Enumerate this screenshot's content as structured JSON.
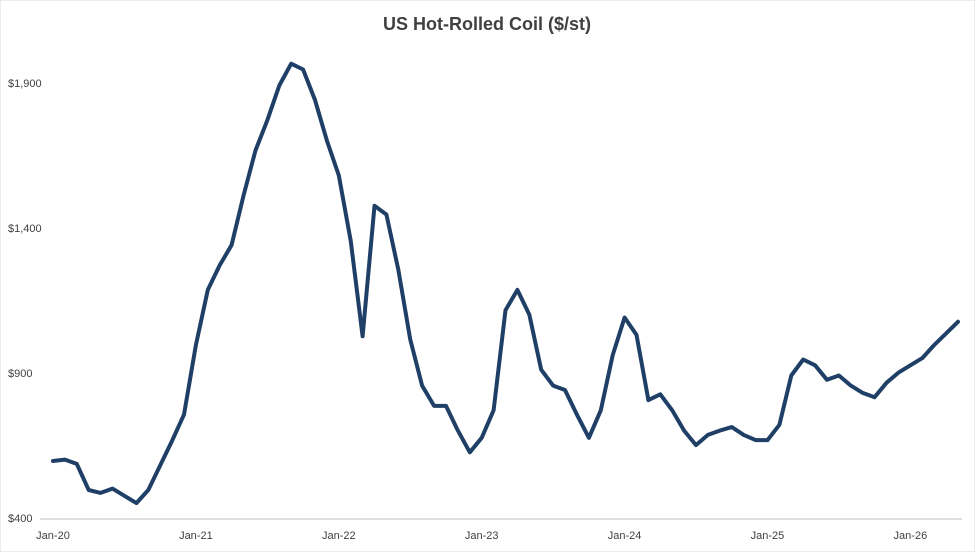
{
  "chart_data": {
    "type": "line",
    "title": "US Hot-Rolled Coil  ($/st)",
    "categories": [
      "Jan-20",
      null,
      null,
      null,
      null,
      null,
      null,
      null,
      null,
      null,
      null,
      null,
      "Jan-21",
      null,
      null,
      null,
      null,
      null,
      null,
      null,
      null,
      null,
      null,
      null,
      "Jan-22",
      null,
      null,
      null,
      null,
      null,
      null,
      null,
      null,
      null,
      null,
      null,
      "Jan-23",
      null,
      null,
      null,
      null,
      null,
      null,
      null,
      null,
      null,
      null,
      null,
      "Jan-24",
      null,
      null,
      null,
      null,
      null,
      null,
      null,
      null,
      null,
      null,
      null,
      "Jan-25",
      null,
      null,
      null,
      null,
      null,
      null,
      null,
      null,
      null,
      null,
      null,
      "Jan-26",
      null,
      null,
      null,
      null
    ],
    "series": [
      {
        "name": "US Hot-Rolled Coil",
        "color": "#1f3f66",
        "values": [
          600,
          605,
          590,
          500,
          490,
          505,
          480,
          455,
          500,
          585,
          670,
          760,
          1000,
          1190,
          1275,
          1345,
          1515,
          1670,
          1775,
          1895,
          1970,
          1950,
          1845,
          1705,
          1585,
          1360,
          1030,
          1480,
          1450,
          1260,
          1020,
          860,
          790,
          790,
          705,
          630,
          680,
          775,
          1120,
          1190,
          1105,
          915,
          860,
          845,
          760,
          680,
          775,
          965,
          1095,
          1035,
          810,
          830,
          775,
          705,
          655,
          690,
          705,
          717,
          690,
          672,
          672,
          725,
          895,
          950,
          930,
          880,
          895,
          860,
          835,
          820,
          870,
          905,
          930,
          955,
          1000,
          1040,
          1080
        ]
      }
    ],
    "ylim": [
      400,
      2100
    ],
    "yticks": [
      {
        "value": 400,
        "label": "$400"
      },
      {
        "value": 900,
        "label": "$900"
      },
      {
        "value": 1400,
        "label": "$1,400"
      },
      {
        "value": 1900,
        "label": "$1,900"
      }
    ],
    "grid": false
  }
}
